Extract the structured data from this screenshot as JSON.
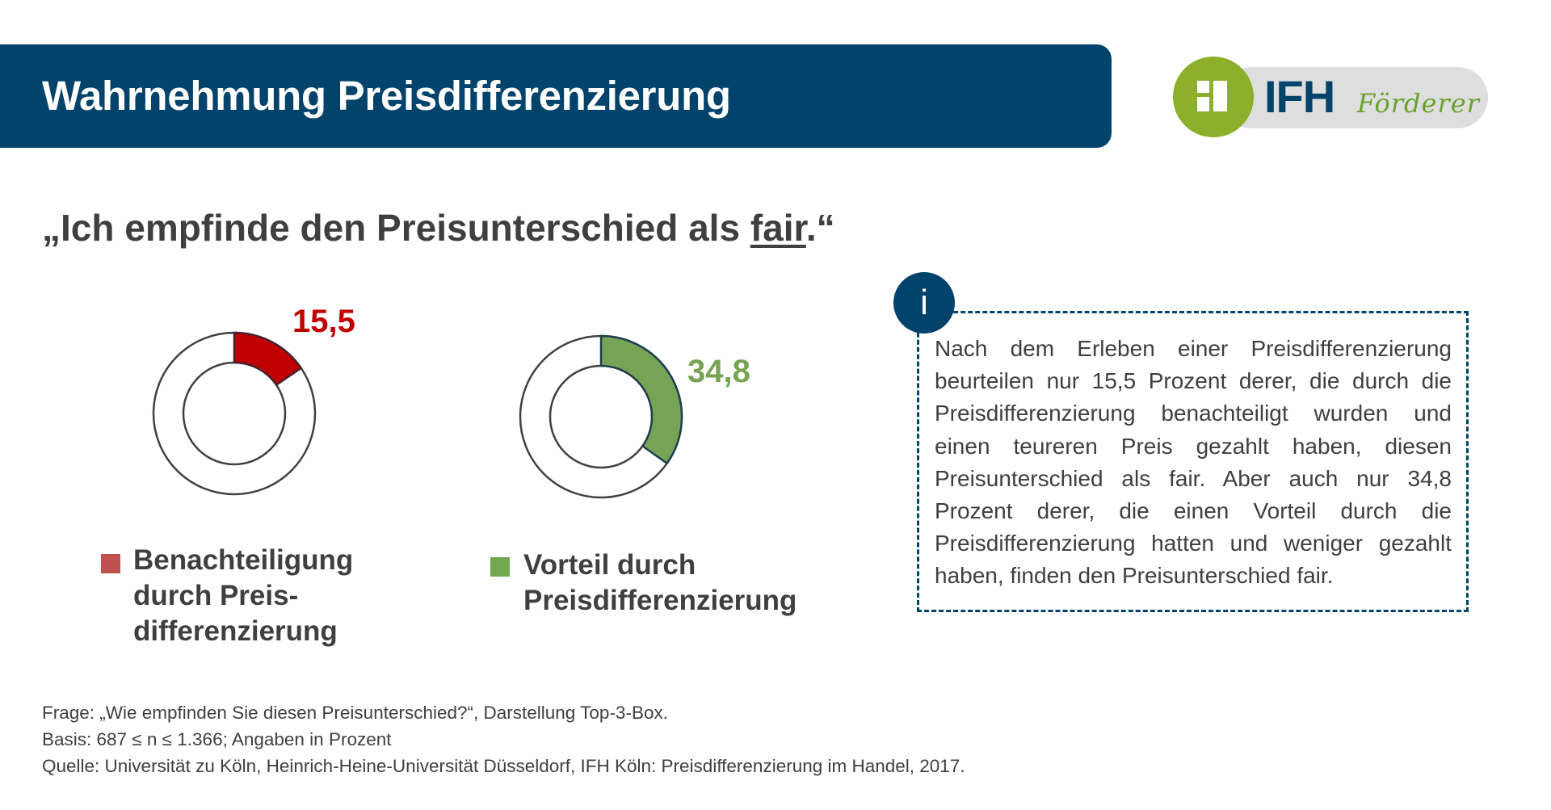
{
  "header": {
    "title": "Wahrnehmung Preisdifferenzierung"
  },
  "logo": {
    "brand": "IFH",
    "tagline": "Förderer",
    "colors": {
      "green": "#8cb02c",
      "blue": "#02436b",
      "pill": "#dedede"
    }
  },
  "quote": {
    "prefix": "„Ich empfinde den Preisunterschied als ",
    "emphasis": "fair",
    "suffix": ".“"
  },
  "chart_data": {
    "type": "pie",
    "title": "„Ich empfinde den Preisunterschied als fair.“",
    "unit": "Prozent",
    "series": [
      {
        "name": "Benachteiligung durch Preisdifferenzierung",
        "value": 15.5,
        "label": "15,5",
        "color": "#c00000",
        "legend_color": "#c0504d"
      },
      {
        "name": "Vorteil durch Preisdifferenzierung",
        "value": 34.8,
        "label": "34,8",
        "color": "#76a356",
        "legend_color": "#70a84f"
      }
    ],
    "max": 100,
    "legend_placement": "bottom"
  },
  "legend": [
    {
      "text": "Benachteiligung\ndurch Preis-\ndifferenzierung"
    },
    {
      "text": "Vorteil durch\nPreisdifferenzierung"
    }
  ],
  "info": {
    "icon_letter": "i",
    "text": "Nach dem Erleben einer Preisdifferenzierung beurteilen nur 15,5 Prozent derer, die durch die Preisdifferenzierung benachteiligt wurden und einen teureren Preis gezahlt haben, diesen Preisunterschied als fair. Aber auch nur 34,8 Prozent derer, die einen Vorteil durch die Preisdifferenzierung hatten und weniger gezahlt haben, finden den Preisunterschied fair."
  },
  "footer": {
    "question": "Frage: „Wie empfinden Sie diesen Preisunterschied?“, Darstellung Top-3-Box.",
    "basis": "Basis: 687 ≤ n ≤ 1.366; Angaben in Prozent",
    "source": "Quelle: Universität zu Köln, Heinrich-Heine-Universität Düsseldorf, IFH Köln: Preisdifferenzierung im Handel, 2017."
  }
}
